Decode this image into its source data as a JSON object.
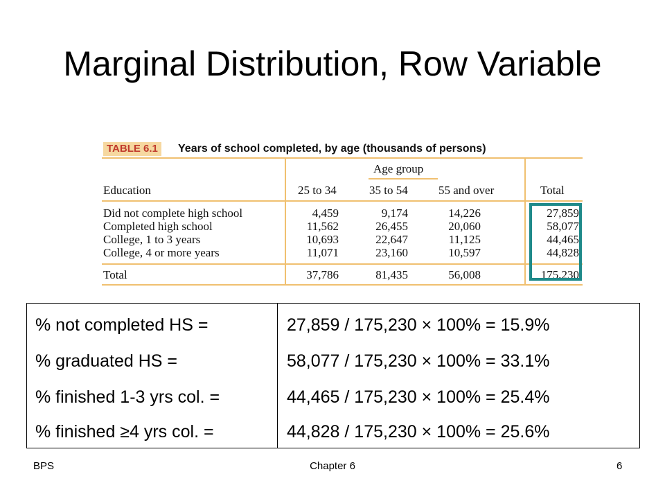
{
  "slide": {
    "title": "Marginal Distribution, Row Variable"
  },
  "table": {
    "badge": "TABLE 6.1",
    "caption": "Years of school completed, by age (thousands of persons)",
    "group_header": "Age group",
    "columns": [
      "Education",
      "25 to 34",
      "35 to 54",
      "55 and over",
      "Total"
    ],
    "rows": [
      {
        "label": "Did not complete high school",
        "values": [
          "4,459",
          "9,174",
          "14,226",
          "27,859"
        ]
      },
      {
        "label": "Completed high school",
        "values": [
          "11,562",
          "26,455",
          "20,060",
          "58,077"
        ]
      },
      {
        "label": "College, 1 to 3 years",
        "values": [
          "10,693",
          "22,647",
          "11,125",
          "44,465"
        ]
      },
      {
        "label": "College, 4 or more years",
        "values": [
          "11,071",
          "23,160",
          "10,597",
          "44,828"
        ]
      }
    ],
    "total_row": {
      "label": "Total",
      "values": [
        "37,786",
        "81,435",
        "56,008",
        "175,230"
      ]
    },
    "colors": {
      "accent_line": "#f0c070",
      "badge_bg": "#f6d8a0",
      "badge_text": "#c0392b",
      "highlight": "#1e8a8a"
    }
  },
  "calculations": [
    {
      "label": "% not completed HS =",
      "formula": "27,859 / 175,230 × 100% = 15.9%"
    },
    {
      "label": "% graduated HS =",
      "formula": "58,077 / 175,230 ×  100% = 33.1%"
    },
    {
      "label": "% finished 1-3 yrs col. =",
      "formula": "44,465 / 175,230 ×  100% = 25.4%"
    },
    {
      "label": "% finished ≥4 yrs col. =",
      "formula": "44,828 / 175,230 ×  100% = 25.6%"
    }
  ],
  "footer": {
    "left": "BPS",
    "center": "Chapter 6",
    "right": "6"
  }
}
